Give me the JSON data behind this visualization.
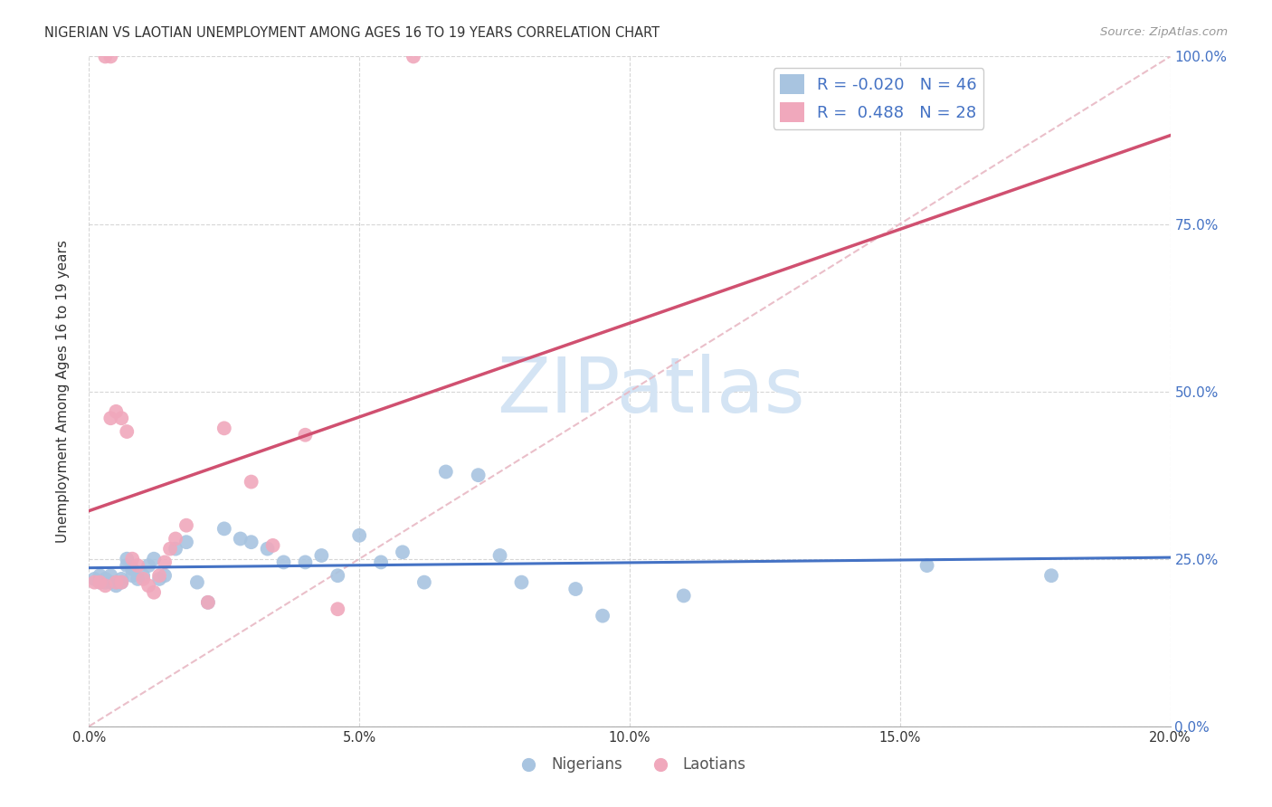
{
  "title": "NIGERIAN VS LAOTIAN UNEMPLOYMENT AMONG AGES 16 TO 19 YEARS CORRELATION CHART",
  "source": "Source: ZipAtlas.com",
  "ylabel": "Unemployment Among Ages 16 to 19 years",
  "xlim": [
    0.0,
    0.2
  ],
  "ylim": [
    0.0,
    1.0
  ],
  "xticks": [
    0.0,
    0.05,
    0.1,
    0.15,
    0.2
  ],
  "yticks": [
    0.0,
    0.25,
    0.5,
    0.75,
    1.0
  ],
  "xticklabels": [
    "0.0%",
    "5.0%",
    "10.0%",
    "15.0%",
    "20.0%"
  ],
  "yticklabels": [
    "0.0%",
    "25.0%",
    "50.0%",
    "75.0%",
    "100.0%"
  ],
  "watermark": "ZIPatlas",
  "background_color": "#ffffff",
  "scatter_blue": "#a8c4e0",
  "scatter_pink": "#f0a8bc",
  "line_blue": "#4472c4",
  "line_pink": "#d05070",
  "line_dashed_color": "#e8b8c4",
  "grid_color": "#cccccc",
  "axis_color_right": "#4472c4",
  "watermark_color": "#d4e4f4",
  "nigerian_x": [
    0.001,
    0.002,
    0.002,
    0.003,
    0.003,
    0.004,
    0.004,
    0.005,
    0.005,
    0.006,
    0.006,
    0.007,
    0.007,
    0.008,
    0.008,
    0.009,
    0.01,
    0.011,
    0.012,
    0.013,
    0.014,
    0.016,
    0.018,
    0.02,
    0.022,
    0.025,
    0.028,
    0.03,
    0.033,
    0.036,
    0.04,
    0.043,
    0.046,
    0.05,
    0.054,
    0.058,
    0.062,
    0.066,
    0.072,
    0.076,
    0.08,
    0.09,
    0.095,
    0.11,
    0.155,
    0.178
  ],
  "nigerian_y": [
    0.22,
    0.215,
    0.225,
    0.215,
    0.22,
    0.215,
    0.225,
    0.215,
    0.21,
    0.22,
    0.215,
    0.25,
    0.24,
    0.235,
    0.225,
    0.22,
    0.225,
    0.24,
    0.25,
    0.22,
    0.225,
    0.265,
    0.275,
    0.215,
    0.185,
    0.295,
    0.28,
    0.275,
    0.265,
    0.245,
    0.245,
    0.255,
    0.225,
    0.285,
    0.245,
    0.26,
    0.215,
    0.38,
    0.375,
    0.255,
    0.215,
    0.205,
    0.165,
    0.195,
    0.24,
    0.225
  ],
  "laotian_x": [
    0.001,
    0.002,
    0.003,
    0.003,
    0.004,
    0.004,
    0.005,
    0.005,
    0.006,
    0.006,
    0.007,
    0.008,
    0.009,
    0.01,
    0.011,
    0.012,
    0.013,
    0.014,
    0.015,
    0.016,
    0.018,
    0.022,
    0.025,
    0.03,
    0.034,
    0.04,
    0.046,
    0.06
  ],
  "laotian_y": [
    0.215,
    0.215,
    0.21,
    1.0,
    0.46,
    1.0,
    0.47,
    0.215,
    0.46,
    0.215,
    0.44,
    0.25,
    0.24,
    0.22,
    0.21,
    0.2,
    0.225,
    0.245,
    0.265,
    0.28,
    0.3,
    0.185,
    0.445,
    0.365,
    0.27,
    0.435,
    0.175,
    1.0
  ],
  "legend_r_blue": "R = -0.020",
  "legend_n_blue": "N = 46",
  "legend_r_pink": "R =  0.488",
  "legend_n_pink": "N = 28",
  "legend_bottom_blue": "Nigerians",
  "legend_bottom_pink": "Laotians"
}
